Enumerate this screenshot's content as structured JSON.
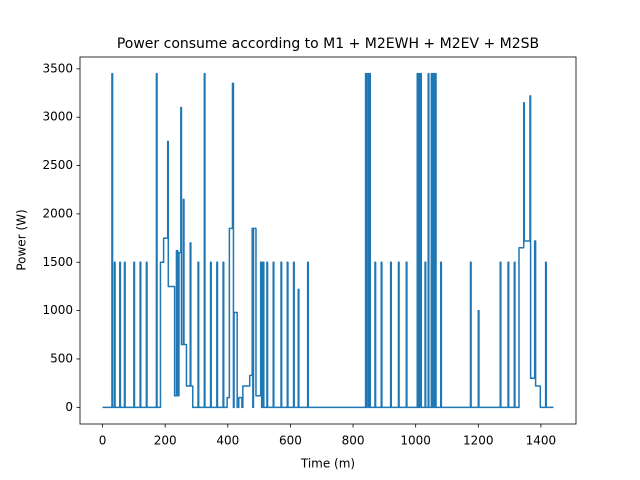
{
  "chart_data": {
    "type": "line",
    "title": "Power consume according to M1 + M2EWH + M2EV + M2SB",
    "x_label": "Time (m)",
    "y_label": "Power (W)",
    "xlim": [
      -72,
      1512
    ],
    "ylim": [
      -172.5,
      3622.5
    ],
    "xticks": [
      0,
      200,
      400,
      600,
      800,
      1000,
      1200,
      1400
    ],
    "yticks": [
      0,
      500,
      1000,
      1500,
      2000,
      2500,
      3000,
      3500
    ],
    "series": [
      {
        "color": "#1f77b4",
        "x": [
          0,
          30,
          30,
          32,
          32,
          38,
          38,
          40,
          40,
          55,
          55,
          57,
          57,
          70,
          70,
          72,
          72,
          100,
          100,
          102,
          102,
          120,
          120,
          122,
          122,
          140,
          140,
          142,
          142,
          172,
          172,
          174,
          174,
          185,
          185,
          195,
          195,
          208,
          208,
          210,
          210,
          230,
          230,
          236,
          236,
          240,
          240,
          244,
          244,
          250,
          250,
          252,
          252,
          258,
          258,
          260,
          260,
          268,
          268,
          280,
          280,
          282,
          282,
          288,
          288,
          305,
          305,
          307,
          307,
          325,
          325,
          327,
          327,
          345,
          345,
          347,
          347,
          365,
          365,
          367,
          367,
          385,
          385,
          387,
          387,
          398,
          398,
          405,
          405,
          415,
          415,
          418,
          418,
          420,
          420,
          430,
          430,
          435,
          435,
          445,
          445,
          448,
          448,
          470,
          470,
          478,
          478,
          480,
          480,
          482,
          482,
          490,
          490,
          505,
          505,
          508,
          508,
          512,
          512,
          515,
          515,
          525,
          525,
          527,
          527,
          545,
          545,
          547,
          547,
          570,
          570,
          572,
          572,
          590,
          590,
          592,
          592,
          610,
          610,
          612,
          612,
          625,
          625,
          627,
          627,
          655,
          655,
          657,
          657,
          840,
          840,
          842,
          842,
          845,
          845,
          850,
          850,
          852,
          852,
          855,
          855,
          870,
          870,
          872,
          872,
          890,
          890,
          892,
          892,
          920,
          920,
          922,
          922,
          945,
          945,
          947,
          947,
          970,
          970,
          972,
          972,
          1005,
          1005,
          1008,
          1008,
          1010,
          1010,
          1014,
          1014,
          1016,
          1016,
          1018,
          1018,
          1030,
          1030,
          1032,
          1032,
          1040,
          1040,
          1042,
          1042,
          1050,
          1050,
          1053,
          1053,
          1056,
          1056,
          1060,
          1060,
          1062,
          1062,
          1065,
          1065,
          1080,
          1080,
          1082,
          1082,
          1175,
          1175,
          1177,
          1177,
          1200,
          1200,
          1202,
          1202,
          1270,
          1270,
          1272,
          1272,
          1295,
          1295,
          1297,
          1297,
          1315,
          1315,
          1317,
          1317,
          1330,
          1330,
          1345,
          1345,
          1347,
          1347,
          1365,
          1365,
          1367,
          1367,
          1380,
          1380,
          1383,
          1383,
          1398,
          1398,
          1415,
          1415,
          1417,
          1417,
          1440
        ],
        "values": [
          0,
          0,
          3450,
          3450,
          0,
          0,
          1500,
          1500,
          0,
          0,
          1500,
          1500,
          0,
          0,
          1500,
          1500,
          0,
          0,
          1500,
          1500,
          0,
          0,
          1500,
          1500,
          0,
          0,
          1500,
          1500,
          0,
          0,
          3450,
          3450,
          0,
          0,
          1500,
          1500,
          1750,
          1750,
          2750,
          2750,
          1250,
          1250,
          120,
          120,
          1620,
          1620,
          120,
          120,
          1600,
          1600,
          3100,
          3100,
          650,
          650,
          2150,
          2150,
          650,
          650,
          220,
          220,
          1700,
          1700,
          220,
          220,
          0,
          0,
          1500,
          1500,
          0,
          0,
          3450,
          3450,
          0,
          0,
          1500,
          1500,
          0,
          0,
          1500,
          1500,
          0,
          0,
          1500,
          1500,
          0,
          0,
          100,
          100,
          1850,
          1850,
          3350,
          3350,
          0,
          0,
          980,
          980,
          0,
          0,
          100,
          100,
          0,
          0,
          220,
          220,
          330,
          330,
          1850,
          1850,
          0,
          0,
          1850,
          1850,
          120,
          120,
          1500,
          1500,
          0,
          0,
          1500,
          1500,
          0,
          0,
          1500,
          1500,
          0,
          0,
          1500,
          1500,
          0,
          0,
          1500,
          1500,
          0,
          0,
          1500,
          1500,
          0,
          0,
          1500,
          1500,
          0,
          0,
          1220,
          1220,
          0,
          0,
          1500,
          1500,
          0,
          0,
          3450,
          3450,
          0,
          0,
          3450,
          3450,
          0,
          0,
          3450,
          3450,
          0,
          0,
          1500,
          1500,
          0,
          0,
          1500,
          1500,
          0,
          0,
          1500,
          1500,
          0,
          0,
          1500,
          1500,
          0,
          0,
          1500,
          1500,
          0,
          0,
          3450,
          3450,
          0,
          0,
          3450,
          3450,
          0,
          0,
          3450,
          3450,
          0,
          0,
          1500,
          1500,
          0,
          0,
          3450,
          3450,
          0,
          0,
          3450,
          3450,
          0,
          0,
          3450,
          3450,
          0,
          0,
          3450,
          3450,
          0,
          0,
          1500,
          1500,
          0,
          0,
          1500,
          1500,
          0,
          0,
          1000,
          1000,
          0,
          0,
          1500,
          1500,
          0,
          0,
          1500,
          1500,
          0,
          0,
          1500,
          1500,
          0,
          0,
          1650,
          1650,
          3150,
          3150,
          1720,
          1720,
          3220,
          3220,
          300,
          300,
          1720,
          1720,
          220,
          220,
          0,
          0,
          1500,
          1500,
          0,
          0
        ]
      }
    ]
  }
}
